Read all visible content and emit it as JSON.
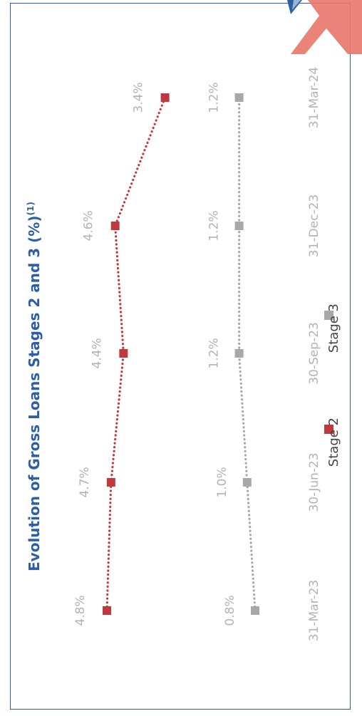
{
  "chart_data": {
    "type": "line",
    "title": "Evolution of Gross Loans Stages 2 and 3 (%)",
    "title_superscript": "(1)",
    "categories": [
      "31-Mar-23",
      "30-Jun-23",
      "30-Sep-23",
      "31-Dec-23",
      "31-Mar-24"
    ],
    "series": [
      {
        "name": "Stage 2",
        "values": [
          4.8,
          4.7,
          4.4,
          4.6,
          3.4
        ],
        "labels": [
          "4.8%",
          "4.7%",
          "4.4%",
          "4.6%",
          "3.4%"
        ],
        "color": "#c0393f"
      },
      {
        "name": "Stage 3",
        "values": [
          0.8,
          1.0,
          1.2,
          1.2,
          1.2
        ],
        "labels": [
          "0.8%",
          "1.0%",
          "1.2%",
          "1.2%",
          "1.2%"
        ],
        "color": "#a8a8a8"
      }
    ],
    "legend_position": "bottom",
    "grid": false,
    "orientation": "rotated-90-counterclockwise"
  },
  "colors": {
    "title": "#2e5fa4",
    "frame": "#2e5fa4",
    "tick_label": "#b3b3b3",
    "legend_text": "#444444"
  }
}
